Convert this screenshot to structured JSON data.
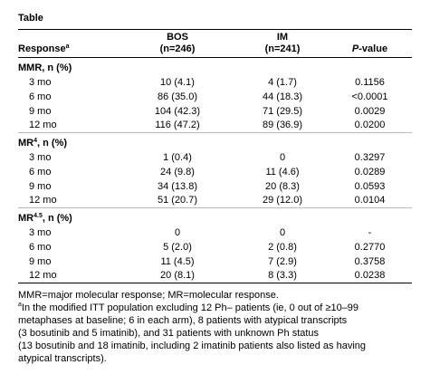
{
  "title": "Table",
  "table": {
    "header": [
      {
        "text": "Response",
        "sup": "a"
      },
      {
        "lines": [
          "BOS",
          "(n=246)"
        ]
      },
      {
        "lines": [
          "IM",
          "(n=241)"
        ]
      },
      {
        "italic": "P",
        "text": "-value"
      }
    ],
    "sections": [
      {
        "label": "MMR, n (%)",
        "rows": [
          [
            "3 mo",
            "10 (4.1)",
            "4 (1.7)",
            "0.1156"
          ],
          [
            "6 mo",
            "86 (35.0)",
            "44 (18.3)",
            "<0.0001"
          ],
          [
            "9 mo",
            "104 (42.3)",
            "71 (29.5)",
            "0.0029"
          ],
          [
            "12 mo",
            "116 (47.2)",
            "89 (36.9)",
            "0.0200"
          ]
        ]
      },
      {
        "label": "MR",
        "sup": "4",
        "rest": ", n (%)",
        "rows": [
          [
            "3 mo",
            "1 (0.4)",
            "0",
            "0.3297"
          ],
          [
            "6 mo",
            "24 (9.8)",
            "11 (4.6)",
            "0.0289"
          ],
          [
            "9 mo",
            "34 (13.8)",
            "20 (8.3)",
            "0.0593"
          ],
          [
            "12 mo",
            "51 (20.7)",
            "29 (12.0)",
            "0.0104"
          ]
        ]
      },
      {
        "label": "MR",
        "sup": "4.5",
        "rest": ", n (%)",
        "rows": [
          [
            "3 mo",
            "0",
            "0",
            "-"
          ],
          [
            "6 mo",
            "5 (2.0)",
            "2 (0.8)",
            "0.2770"
          ],
          [
            "9 mo",
            "11 (4.5)",
            "7 (2.9)",
            "0.3758"
          ],
          [
            "12 mo",
            "20 (8.1)",
            "8 (3.3)",
            "0.0238"
          ]
        ]
      }
    ]
  },
  "footnotes": [
    {
      "lines": [
        "MMR=major molecular response; MR=molecular response."
      ]
    },
    {
      "sup": "a",
      "lines": [
        "In the modified ITT population excluding 12 Ph– patients (ie, 0 out of ≥10–99",
        "metaphases at baseline; 6 in each arm), 8 patients with atypical transcripts",
        "(3 bosutinib and 5 imatinib), and 31 patients with unknown Ph status",
        "(13 bosutinib and 18 imatinib, including 2 imatinib patients also listed as having",
        "atypical transcripts)."
      ]
    }
  ]
}
